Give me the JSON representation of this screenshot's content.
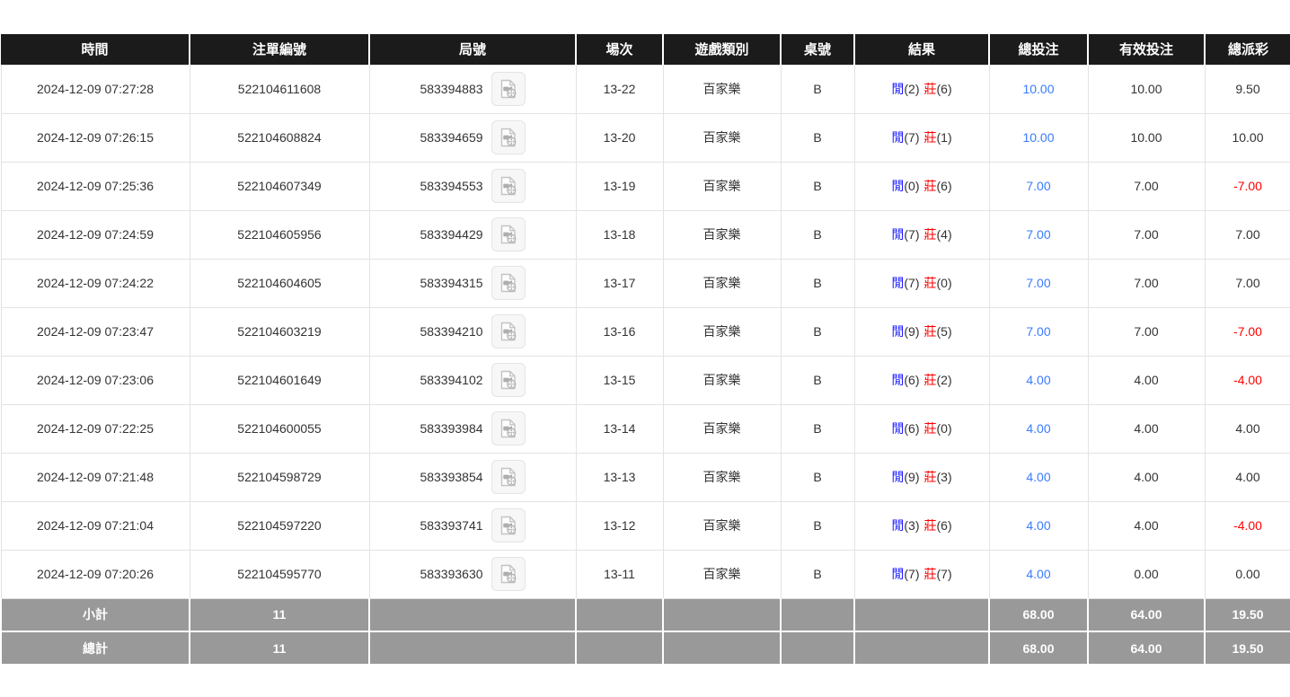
{
  "table": {
    "columns": [
      {
        "key": "time",
        "label": "時間"
      },
      {
        "key": "bet_id",
        "label": "注單編號"
      },
      {
        "key": "round",
        "label": "局號"
      },
      {
        "key": "session",
        "label": "場次"
      },
      {
        "key": "game_type",
        "label": "遊戲類別"
      },
      {
        "key": "table_no",
        "label": "桌號"
      },
      {
        "key": "result",
        "label": "結果"
      },
      {
        "key": "total_bet",
        "label": "總投注"
      },
      {
        "key": "valid_bet",
        "label": "有效投注"
      },
      {
        "key": "total_payout",
        "label": "總派彩"
      }
    ],
    "rows": [
      {
        "time": "2024-12-09 07:27:28",
        "bet_id": "522104611608",
        "round": "583394883",
        "session": "13-22",
        "game_type": "百家樂",
        "table_no": "B",
        "result": {
          "player_label": "閒",
          "player_points": "(2)",
          "banker_label": "莊",
          "banker_points": "(6)"
        },
        "total_bet": "10.00",
        "valid_bet": "10.00",
        "total_payout": "9.50"
      },
      {
        "time": "2024-12-09 07:26:15",
        "bet_id": "522104608824",
        "round": "583394659",
        "session": "13-20",
        "game_type": "百家樂",
        "table_no": "B",
        "result": {
          "player_label": "閒",
          "player_points": "(7)",
          "banker_label": "莊",
          "banker_points": "(1)"
        },
        "total_bet": "10.00",
        "valid_bet": "10.00",
        "total_payout": "10.00"
      },
      {
        "time": "2024-12-09 07:25:36",
        "bet_id": "522104607349",
        "round": "583394553",
        "session": "13-19",
        "game_type": "百家樂",
        "table_no": "B",
        "result": {
          "player_label": "閒",
          "player_points": "(0)",
          "banker_label": "莊",
          "banker_points": "(6)"
        },
        "total_bet": "7.00",
        "valid_bet": "7.00",
        "total_payout": "-7.00"
      },
      {
        "time": "2024-12-09 07:24:59",
        "bet_id": "522104605956",
        "round": "583394429",
        "session": "13-18",
        "game_type": "百家樂",
        "table_no": "B",
        "result": {
          "player_label": "閒",
          "player_points": "(7)",
          "banker_label": "莊",
          "banker_points": "(4)"
        },
        "total_bet": "7.00",
        "valid_bet": "7.00",
        "total_payout": "7.00"
      },
      {
        "time": "2024-12-09 07:24:22",
        "bet_id": "522104604605",
        "round": "583394315",
        "session": "13-17",
        "game_type": "百家樂",
        "table_no": "B",
        "result": {
          "player_label": "閒",
          "player_points": "(7)",
          "banker_label": "莊",
          "banker_points": "(0)"
        },
        "total_bet": "7.00",
        "valid_bet": "7.00",
        "total_payout": "7.00"
      },
      {
        "time": "2024-12-09 07:23:47",
        "bet_id": "522104603219",
        "round": "583394210",
        "session": "13-16",
        "game_type": "百家樂",
        "table_no": "B",
        "result": {
          "player_label": "閒",
          "player_points": "(9)",
          "banker_label": "莊",
          "banker_points": "(5)"
        },
        "total_bet": "7.00",
        "valid_bet": "7.00",
        "total_payout": "-7.00"
      },
      {
        "time": "2024-12-09 07:23:06",
        "bet_id": "522104601649",
        "round": "583394102",
        "session": "13-15",
        "game_type": "百家樂",
        "table_no": "B",
        "result": {
          "player_label": "閒",
          "player_points": "(6)",
          "banker_label": "莊",
          "banker_points": "(2)"
        },
        "total_bet": "4.00",
        "valid_bet": "4.00",
        "total_payout": "-4.00"
      },
      {
        "time": "2024-12-09 07:22:25",
        "bet_id": "522104600055",
        "round": "583393984",
        "session": "13-14",
        "game_type": "百家樂",
        "table_no": "B",
        "result": {
          "player_label": "閒",
          "player_points": "(6)",
          "banker_label": "莊",
          "banker_points": "(0)"
        },
        "total_bet": "4.00",
        "valid_bet": "4.00",
        "total_payout": "4.00"
      },
      {
        "time": "2024-12-09 07:21:48",
        "bet_id": "522104598729",
        "round": "583393854",
        "session": "13-13",
        "game_type": "百家樂",
        "table_no": "B",
        "result": {
          "player_label": "閒",
          "player_points": "(9)",
          "banker_label": "莊",
          "banker_points": "(3)"
        },
        "total_bet": "4.00",
        "valid_bet": "4.00",
        "total_payout": "4.00"
      },
      {
        "time": "2024-12-09 07:21:04",
        "bet_id": "522104597220",
        "round": "583393741",
        "session": "13-12",
        "game_type": "百家樂",
        "table_no": "B",
        "result": {
          "player_label": "閒",
          "player_points": "(3)",
          "banker_label": "莊",
          "banker_points": "(6)"
        },
        "total_bet": "4.00",
        "valid_bet": "4.00",
        "total_payout": "-4.00"
      },
      {
        "time": "2024-12-09 07:20:26",
        "bet_id": "522104595770",
        "round": "583393630",
        "session": "13-11",
        "game_type": "百家樂",
        "table_no": "B",
        "result": {
          "player_label": "閒",
          "player_points": "(7)",
          "banker_label": "莊",
          "banker_points": "(7)"
        },
        "total_bet": "4.00",
        "valid_bet": "0.00",
        "total_payout": "0.00"
      }
    ],
    "subtotal": {
      "label": "小計",
      "bet_count": "11",
      "total_bet": "68.00",
      "valid_bet": "64.00",
      "total_payout": "19.50"
    },
    "grand_total": {
      "label": "總計",
      "bet_count": "11",
      "total_bet": "68.00",
      "valid_bet": "64.00",
      "total_payout": "19.50"
    }
  },
  "colors": {
    "header_bg": "#1b1b1b",
    "header_text": "#ffffff",
    "summary_bg": "#999999",
    "summary_text": "#ffffff",
    "player_blue": "#1a1aff",
    "banker_red": "#ff0000",
    "amount_blue": "#3a7bfd",
    "negative_red": "#ff0000",
    "row_text": "#333333"
  }
}
